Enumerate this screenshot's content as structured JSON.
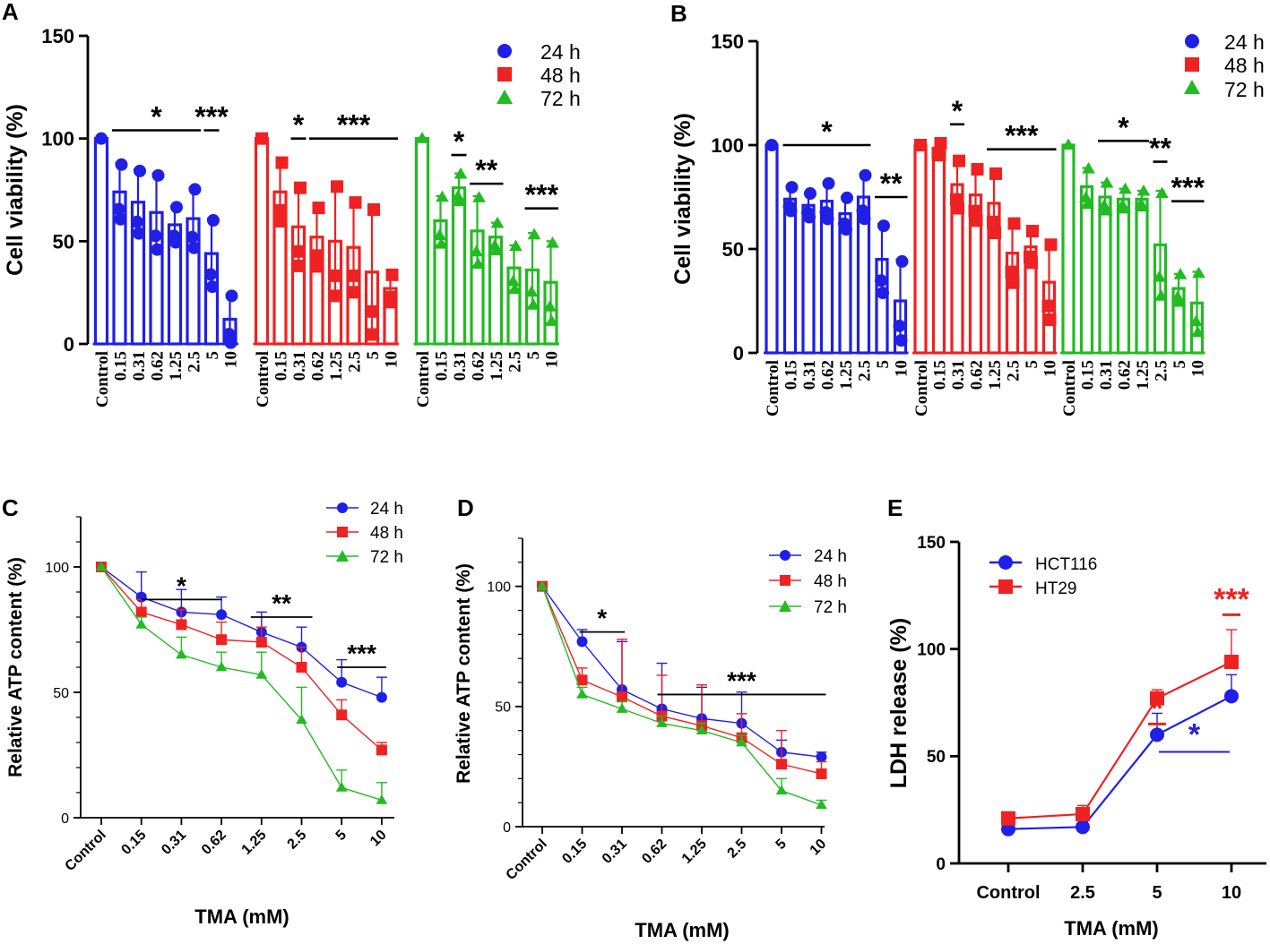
{
  "colors": {
    "h24": "#1f1fe6",
    "h48": "#ee2222",
    "h72": "#22bb22",
    "hct116": "#1f1fe6",
    "ht29": "#ee2222",
    "ink": "#000000"
  },
  "chart_data": [
    {
      "panel": "A",
      "type": "bar",
      "ylabel": "Cell viability (%)",
      "ylim": [
        0,
        150
      ],
      "yticks": [
        0,
        50,
        100,
        150
      ],
      "categories": [
        "Control",
        "0.15",
        "0.31",
        "0.62",
        "1.25",
        "2.5",
        "5",
        "10"
      ],
      "legend": [
        "24 h",
        "48 h",
        "72 h"
      ],
      "series": [
        {
          "name": "24 h",
          "values": [
            100,
            74,
            69,
            64,
            58,
            61,
            44,
            12
          ],
          "errors": [
            0,
            14,
            16,
            19,
            9,
            15,
            17,
            12
          ]
        },
        {
          "name": "48 h",
          "values": [
            100,
            74,
            57,
            52,
            50,
            47,
            35,
            27
          ],
          "errors": [
            0,
            15,
            20,
            15,
            28,
            23,
            32,
            7
          ]
        },
        {
          "name": "72 h",
          "values": [
            100,
            60,
            76,
            55,
            52,
            37,
            36,
            30
          ],
          "errors": [
            0,
            12,
            7,
            17,
            7,
            11,
            18,
            20
          ]
        }
      ],
      "significance": [
        {
          "series": "24 h",
          "from": 1,
          "to": 5,
          "label": "*"
        },
        {
          "series": "24 h",
          "from": 6,
          "to": 6,
          "label": "***"
        },
        {
          "series": "48 h",
          "from": 2,
          "to": 2,
          "label": "*"
        },
        {
          "series": "48 h",
          "from": 3,
          "to": 7,
          "label": "***"
        },
        {
          "series": "72 h",
          "from": 2,
          "to": 2,
          "label": "*"
        },
        {
          "series": "72 h",
          "from": 3,
          "to": 4,
          "label": "**"
        },
        {
          "series": "72 h",
          "from": 6,
          "to": 7,
          "label": "***"
        }
      ]
    },
    {
      "panel": "B",
      "type": "bar",
      "ylabel": "Cell viability (%)",
      "ylim": [
        0,
        150
      ],
      "yticks": [
        0,
        50,
        100,
        150
      ],
      "categories": [
        "Control",
        "0.15",
        "0.31",
        "0.62",
        "1.25",
        "2.5",
        "5",
        "10"
      ],
      "legend": [
        "24 h",
        "48 h",
        "72 h"
      ],
      "series": [
        {
          "name": "24 h",
          "values": [
            100,
            74,
            71,
            73,
            67,
            75,
            45,
            25
          ],
          "errors": [
            0,
            6,
            6,
            9,
            8,
            11,
            17,
            20
          ]
        },
        {
          "name": "48 h",
          "values": [
            100,
            98,
            81,
            76,
            72,
            48,
            51,
            34
          ],
          "errors": [
            0,
            3,
            12,
            13,
            15,
            15,
            8,
            19
          ]
        },
        {
          "name": "72 h",
          "values": [
            100,
            80,
            75,
            74,
            74,
            52,
            31,
            24
          ],
          "errors": [
            0,
            9,
            7,
            5,
            4,
            26,
            7,
            15
          ]
        }
      ],
      "significance": [
        {
          "series": "24 h",
          "from": 1,
          "to": 5,
          "label": "*"
        },
        {
          "series": "24 h",
          "from": 6,
          "to": 7,
          "label": "**"
        },
        {
          "series": "48 h",
          "from": 2,
          "to": 2,
          "label": "*"
        },
        {
          "series": "48 h",
          "from": 4,
          "to": 7,
          "label": "***"
        },
        {
          "series": "72 h",
          "from": 2,
          "to": 4,
          "label": "*"
        },
        {
          "series": "72 h",
          "from": 5,
          "to": 5,
          "label": "**"
        },
        {
          "series": "72 h",
          "from": 6,
          "to": 7,
          "label": "***"
        }
      ]
    },
    {
      "panel": "C",
      "type": "line",
      "xlabel": "TMA (mM)",
      "ylabel": "Relative ATP content (%)",
      "ylim": [
        0,
        120
      ],
      "yticks": [
        0,
        50,
        100
      ],
      "categories": [
        "Control",
        "0.15",
        "0.31",
        "0.62",
        "1.25",
        "2.5",
        "5",
        "10"
      ],
      "legend": [
        "24 h",
        "48 h",
        "72 h"
      ],
      "series": [
        {
          "name": "24 h",
          "values": [
            100,
            88,
            82,
            81,
            74,
            68,
            54,
            48
          ],
          "errors": [
            0,
            10,
            9,
            7,
            8,
            8,
            9,
            8
          ]
        },
        {
          "name": "48 h",
          "values": [
            100,
            82,
            77,
            71,
            70,
            60,
            41,
            27
          ],
          "errors": [
            0,
            5,
            6,
            7,
            6,
            8,
            6,
            3
          ]
        },
        {
          "name": "72 h",
          "values": [
            100,
            77,
            65,
            60,
            57,
            39,
            12,
            7
          ],
          "errors": [
            0,
            3,
            7,
            6,
            9,
            13,
            7,
            7
          ]
        }
      ],
      "significance": [
        {
          "from": 1,
          "to": 3,
          "label": "*"
        },
        {
          "from": 4,
          "to": 5,
          "label": "**"
        },
        {
          "from": 6,
          "to": 7,
          "label": "***"
        }
      ]
    },
    {
      "panel": "D",
      "type": "line",
      "xlabel": "TMA (mM)",
      "ylabel": "Relative ATP content (%)",
      "ylim": [
        0,
        120
      ],
      "yticks": [
        0,
        50,
        100
      ],
      "categories": [
        "Control",
        "0.15",
        "0.31",
        "0.62",
        "1.25",
        "2.5",
        "5",
        "10"
      ],
      "legend": [
        "24 h",
        "48 h",
        "72 h"
      ],
      "series": [
        {
          "name": "24 h",
          "values": [
            100,
            77,
            57,
            49,
            45,
            43,
            31,
            29
          ],
          "errors": [
            0,
            5,
            20,
            19,
            13,
            13,
            5,
            2
          ]
        },
        {
          "name": "48 h",
          "values": [
            100,
            61,
            54,
            46,
            42,
            37,
            26,
            22
          ],
          "errors": [
            0,
            5,
            24,
            17,
            17,
            10,
            14,
            5
          ]
        },
        {
          "name": "72 h",
          "values": [
            100,
            55,
            49,
            43,
            40,
            35,
            15,
            9
          ],
          "errors": [
            0,
            3,
            3,
            3,
            3,
            3,
            5,
            2
          ]
        }
      ],
      "significance": [
        {
          "from": 1,
          "to": 2,
          "label": "*"
        },
        {
          "from": 3,
          "to": 7,
          "label": "***"
        }
      ]
    },
    {
      "panel": "E",
      "type": "line",
      "xlabel": "TMA (mM)",
      "ylabel": "LDH release (%)",
      "ylim": [
        0,
        150
      ],
      "yticks": [
        0,
        50,
        100,
        150
      ],
      "categories": [
        "Control",
        "2.5",
        "5",
        "10"
      ],
      "legend": [
        "HCT116",
        "HT29"
      ],
      "series": [
        {
          "name": "HCT116",
          "values": [
            16,
            17,
            60,
            78
          ],
          "errors": [
            2,
            2,
            10,
            10
          ]
        },
        {
          "name": "HT29",
          "values": [
            21,
            23,
            77,
            94
          ],
          "errors": [
            3,
            4,
            4,
            15
          ]
        }
      ],
      "significance": [
        {
          "series": "HT29",
          "from": 2,
          "to": 2,
          "label": "*"
        },
        {
          "series": "HT29",
          "from": 3,
          "to": 3,
          "label": "***"
        },
        {
          "series": "HCT116",
          "from": 2,
          "to": 3,
          "label": "*"
        }
      ]
    }
  ]
}
